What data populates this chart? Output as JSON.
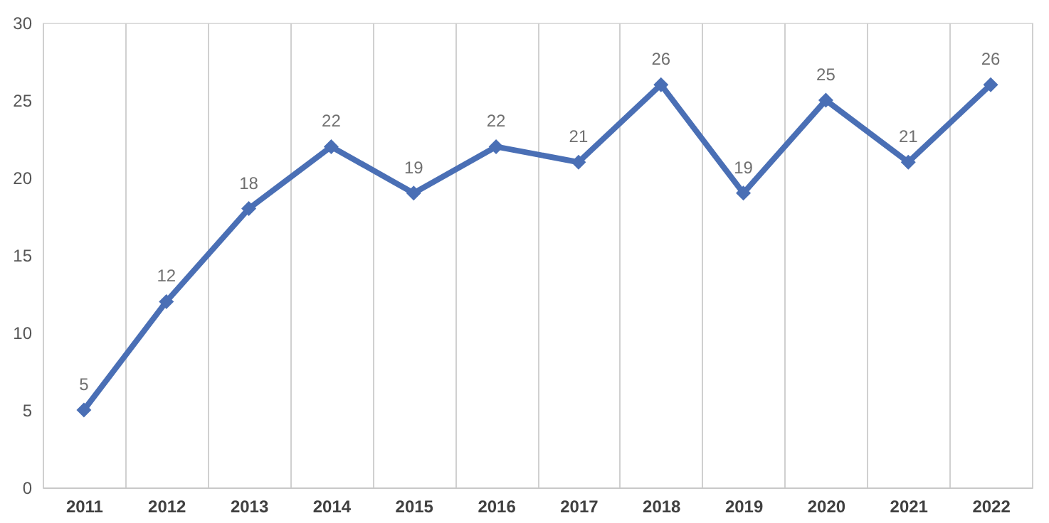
{
  "chart_data": {
    "type": "line",
    "categories": [
      "2011",
      "2012",
      "2013",
      "2014",
      "2015",
      "2016",
      "2017",
      "2018",
      "2019",
      "2020",
      "2021",
      "2022"
    ],
    "series": [
      {
        "color": "#4a6fb5",
        "values": [
          5,
          12,
          18,
          22,
          19,
          22,
          21,
          26,
          19,
          25,
          21,
          26
        ]
      }
    ],
    "ylim": [
      0,
      30
    ],
    "yticks": [
      0,
      5,
      10,
      15,
      20,
      25,
      30
    ],
    "grid": "x",
    "marker": "diamond",
    "line_style": "solid",
    "data_labels": true,
    "legend": false
  }
}
